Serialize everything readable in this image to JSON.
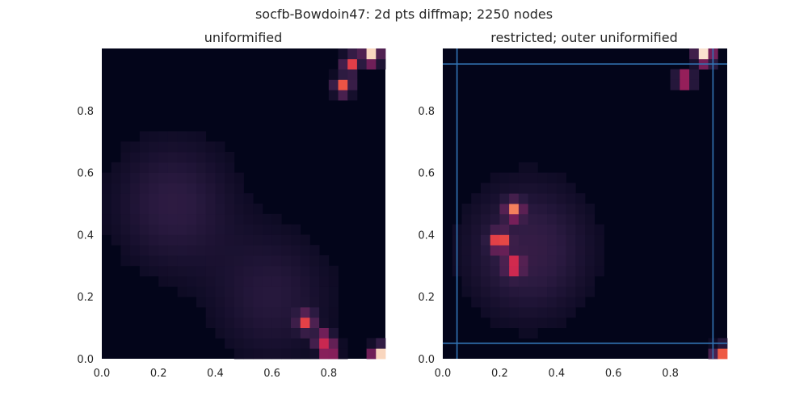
{
  "figure": {
    "title": "socfb-Bowdoin47: 2d pts diffmap; 2250 nodes"
  },
  "colormap": {
    "name": "rocket",
    "stops": [
      "#03051a",
      "#2a1a40",
      "#4b2150",
      "#7a1f5a",
      "#b11f5a",
      "#dc2e4a",
      "#f06043",
      "#f6936b",
      "#f8c7a9",
      "#faebdd"
    ]
  },
  "chart_data": [
    {
      "type": "heatmap",
      "title": "uniformified",
      "xlabel": "",
      "ylabel": "",
      "xlim": [
        0.0,
        1.0
      ],
      "ylim": [
        0.0,
        1.0
      ],
      "xticks": [
        "0.0",
        "0.2",
        "0.4",
        "0.6",
        "0.8"
      ],
      "yticks": [
        "0.0",
        "0.2",
        "0.4",
        "0.6",
        "0.8"
      ],
      "grid": false,
      "bins": 30,
      "peaks": [
        {
          "x": 0.98,
          "y": 0.01,
          "v": 1.0
        },
        {
          "x": 0.8,
          "y": 0.03,
          "v": 0.6
        },
        {
          "x": 0.78,
          "y": 0.06,
          "v": 0.55
        },
        {
          "x": 0.72,
          "y": 0.12,
          "v": 0.55
        },
        {
          "x": 0.95,
          "y": 0.98,
          "v": 0.95
        },
        {
          "x": 0.88,
          "y": 0.95,
          "v": 0.6
        },
        {
          "x": 0.85,
          "y": 0.88,
          "v": 0.65
        }
      ],
      "background": [
        {
          "x": 0.25,
          "y": 0.5,
          "v": 0.12
        },
        {
          "x": 0.6,
          "y": 0.2,
          "v": 0.1
        }
      ],
      "guide_lines": []
    },
    {
      "type": "heatmap",
      "title": "restricted; outer uniformified",
      "xlabel": "",
      "ylabel": "",
      "xlim": [
        0.0,
        1.0
      ],
      "ylim": [
        0.0,
        1.0
      ],
      "xticks": [
        "0.0",
        "0.2",
        "0.4",
        "0.6",
        "0.8"
      ],
      "yticks": [
        "0.0",
        "0.2",
        "0.4",
        "0.6",
        "0.8"
      ],
      "grid": false,
      "bins": 30,
      "peaks": [
        {
          "x": 0.92,
          "y": 0.98,
          "v": 1.0
        },
        {
          "x": 0.98,
          "y": 0.01,
          "v": 0.7
        },
        {
          "x": 0.25,
          "y": 0.48,
          "v": 0.65
        },
        {
          "x": 0.2,
          "y": 0.38,
          "v": 0.7
        },
        {
          "x": 0.25,
          "y": 0.3,
          "v": 0.55
        },
        {
          "x": 0.85,
          "y": 0.9,
          "v": 0.55
        }
      ],
      "background": [
        {
          "x": 0.3,
          "y": 0.35,
          "v": 0.15
        }
      ],
      "guide_lines": [
        {
          "orientation": "vertical",
          "value": 0.05
        },
        {
          "orientation": "vertical",
          "value": 0.95
        },
        {
          "orientation": "horizontal",
          "value": 0.05
        },
        {
          "orientation": "horizontal",
          "value": 0.95
        }
      ],
      "guide_color": "#3274b5"
    }
  ]
}
